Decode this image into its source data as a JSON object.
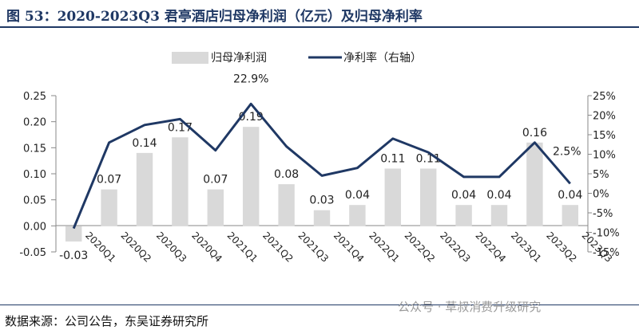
{
  "figure": {
    "title": "图 53：2020-2023Q3 君亭酒店归母净利润（亿元）及归母净利率",
    "source": "数据来源：公司公告，东吴证券研究所",
    "watermark": "公众号 · 草叔消费升级研究"
  },
  "chart_data": {
    "type": "bar",
    "categories": [
      "2020Q1",
      "2020Q2",
      "2020Q3",
      "2020Q4",
      "2021Q1",
      "2021Q2",
      "2021Q3",
      "2021Q4",
      "2022Q1",
      "2022Q2",
      "2022Q3",
      "2022Q4",
      "2023Q1",
      "2023Q2",
      "2023Q3"
    ],
    "series": [
      {
        "name": "归母净利润",
        "type": "bar",
        "axis": "left",
        "color": "#d9d9d9",
        "values": [
          -0.03,
          0.07,
          0.14,
          0.17,
          0.07,
          0.19,
          0.08,
          0.03,
          0.04,
          0.11,
          0.11,
          0.04,
          0.04,
          0.16,
          0.04
        ],
        "labels": [
          "-0.03",
          "0.07",
          "0.14",
          "0.17",
          "0.07",
          "0.19",
          "0.08",
          "0.03",
          "0.04",
          "0.11",
          "0.11",
          "0.04",
          "0.04",
          "0.16",
          "0.04"
        ]
      },
      {
        "name": "净利率（右轴）",
        "type": "line",
        "axis": "right",
        "color": "#1f3864",
        "values": [
          -9.0,
          13.0,
          17.5,
          19.0,
          11.0,
          22.9,
          12.0,
          4.5,
          6.5,
          14.0,
          10.5,
          4.2,
          4.2,
          13.0,
          2.5
        ],
        "point_labels": [
          "",
          "",
          "",
          "",
          "",
          "22.9%",
          "",
          "",
          "",
          "",
          "",
          "",
          "",
          "",
          "2.5%"
        ]
      }
    ],
    "left_axis": {
      "min": -0.05,
      "max": 0.25,
      "ticks": [
        "0.25",
        "0.20",
        "0.15",
        "0.10",
        "0.05",
        "0.00",
        "-0.05"
      ]
    },
    "right_axis": {
      "min": -15,
      "max": 25,
      "unit": "%",
      "ticks": [
        "25%",
        "20%",
        "15%",
        "10%",
        "5%",
        "0%",
        "-5%",
        "-10%",
        "-15%"
      ]
    },
    "legend_position": "top-center",
    "grid": false
  }
}
